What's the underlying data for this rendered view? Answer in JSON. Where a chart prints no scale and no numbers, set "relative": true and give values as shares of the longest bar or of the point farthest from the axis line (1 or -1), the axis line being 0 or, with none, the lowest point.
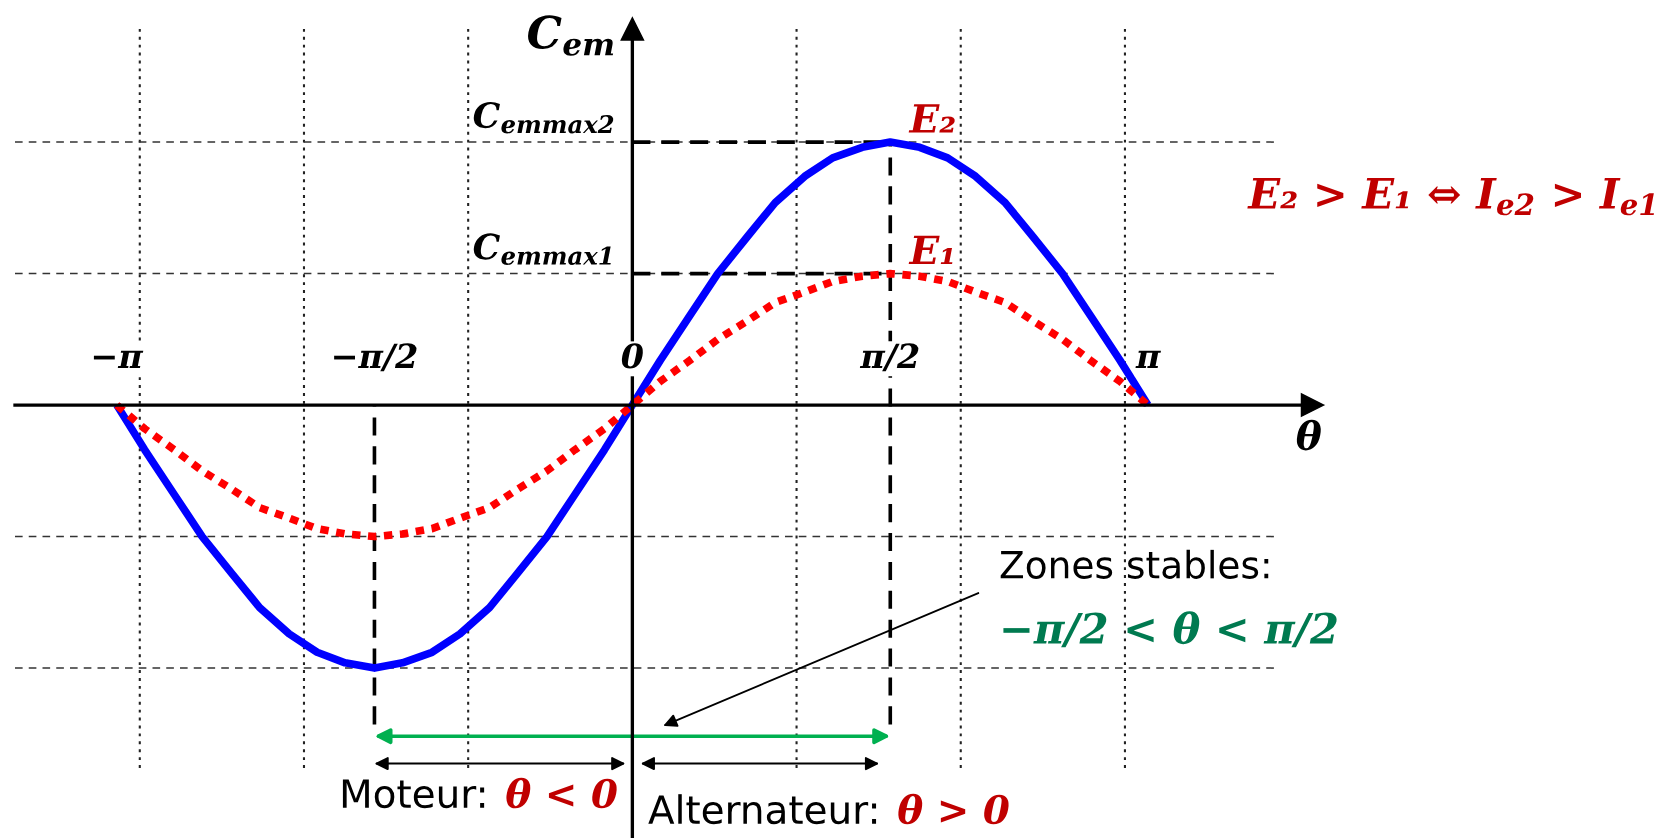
{
  "chart_data": {
    "type": "line",
    "relative": true,
    "x": [
      -3.14,
      -2.97,
      -2.79,
      -2.62,
      -2.44,
      -2.27,
      -2.09,
      -1.92,
      -1.75,
      -1.57,
      -1.4,
      -1.22,
      -1.05,
      -0.87,
      -0.7,
      -0.52,
      -0.35,
      -0.17,
      0,
      0.17,
      0.35,
      0.52,
      0.7,
      0.87,
      1.05,
      1.22,
      1.4,
      1.57,
      1.75,
      1.92,
      2.09,
      2.27,
      2.44,
      2.62,
      2.79,
      2.97,
      3.14
    ],
    "series": [
      {
        "name": "E₂",
        "color": "#0000ff",
        "line_style": "solid",
        "values": [
          0,
          -0.17,
          -0.34,
          -0.5,
          -0.64,
          -0.77,
          -0.87,
          -0.94,
          -0.98,
          -1,
          -0.98,
          -0.94,
          -0.87,
          -0.77,
          -0.64,
          -0.5,
          -0.34,
          -0.17,
          0,
          0.17,
          0.34,
          0.5,
          0.64,
          0.77,
          0.87,
          0.94,
          0.98,
          1,
          0.98,
          0.94,
          0.87,
          0.77,
          0.64,
          0.5,
          0.34,
          0.17,
          0
        ]
      },
      {
        "name": "E₁",
        "color": "#ff0000",
        "line_style": "dotted",
        "values": [
          0,
          -0.09,
          -0.17,
          -0.25,
          -0.32,
          -0.39,
          -0.43,
          -0.47,
          -0.49,
          -0.5,
          -0.49,
          -0.47,
          -0.43,
          -0.39,
          -0.32,
          -0.25,
          -0.17,
          -0.09,
          0,
          0.09,
          0.17,
          0.25,
          0.32,
          0.39,
          0.43,
          0.47,
          0.49,
          0.5,
          0.49,
          0.47,
          0.43,
          0.39,
          0.32,
          0.25,
          0.17,
          0.09,
          0
        ]
      }
    ],
    "xlabel": "θ",
    "ylabel": "C$_{em}$",
    "xlim": [
      -3.76,
      3.92
    ],
    "xticks": [
      {
        "value": -3.1416,
        "label": "−π"
      },
      {
        "value": -3,
        "label": null
      },
      {
        "value": -2,
        "label": null
      },
      {
        "value": -1.5708,
        "label": "−π/2"
      },
      {
        "value": -1,
        "label": null
      },
      0,
      {
        "value": 1,
        "label": null
      },
      {
        "value": 1.5708,
        "label": "π/2"
      },
      {
        "value": 2,
        "label": null
      },
      {
        "value": 3,
        "label": null
      },
      {
        "value": 3.1416,
        "label": "π"
      }
    ],
    "grid": "x",
    "ref_lines": [
      {
        "axis": "y",
        "value": 1,
        "color": "#333333",
        "line_style": "dashed"
      },
      {
        "axis": "y",
        "value": 0.5,
        "color": "#333333",
        "line_style": "dashed"
      },
      {
        "axis": "y",
        "value": -0.5,
        "color": "#333333",
        "line_style": "dashed"
      },
      {
        "axis": "y",
        "value": -1,
        "color": "#333333",
        "line_style": "dashed"
      },
      {
        "axis": "x",
        "value": -1.5708,
        "color": "#000000",
        "line_style": "dashed"
      },
      {
        "axis": "x",
        "value": 1.5708,
        "color": "#000000",
        "line_style": "dashed"
      },
      {
        "axis": "y",
        "value": 1,
        "label": "C$_{emmax2}$",
        "color": "#000000",
        "line_style": "dashed"
      },
      {
        "axis": "y",
        "value": 0.5,
        "label": "C$_{emmax1}$",
        "color": "#000000",
        "line_style": "dashed"
      }
    ],
    "annotations": [
      "E₂ > E₁ ⇔ I$_{e2}$ > I$_{e1}$",
      "Zones stables:",
      "−π/2 < θ < π/2",
      "Moteur:",
      "θ < 0",
      "Alternateur:",
      "θ > 0"
    ]
  }
}
